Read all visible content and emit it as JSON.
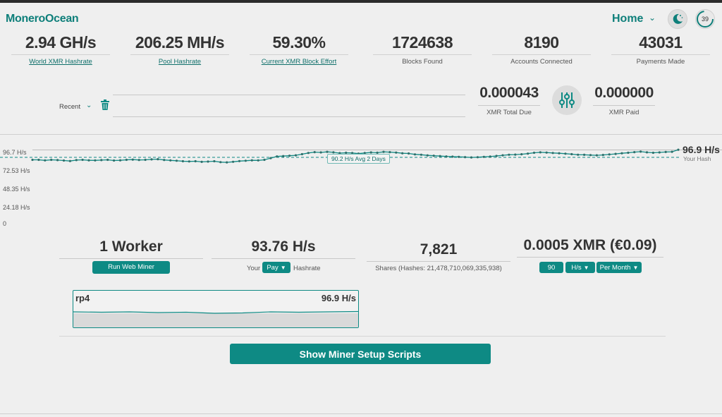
{
  "app": {
    "brand": "MoneroOcean"
  },
  "nav": {
    "current": "Home",
    "badge": "39"
  },
  "stats": [
    {
      "value": "2.94 GH/s",
      "label": "World XMR Hashrate",
      "link": true
    },
    {
      "value": "206.25 MH/s",
      "label": "Pool Hashrate",
      "link": true
    },
    {
      "value": "59.30%",
      "label": "Current XMR Block Effort",
      "link": true
    },
    {
      "value": "1724638",
      "label": "Blocks Found",
      "link": false
    },
    {
      "value": "8190",
      "label": "Accounts Connected",
      "link": false
    },
    {
      "value": "43031",
      "label": "Payments Made",
      "link": false
    }
  ],
  "address": {
    "selector": "Recent"
  },
  "balance": {
    "due_value": "0.000043",
    "due_label": "XMR Total Due",
    "paid_value": "0.000000",
    "paid_label": "XMR Paid"
  },
  "chart_data": {
    "type": "line",
    "title": "",
    "y_tick_labels": [
      "96.7 H/s",
      "72.53 H/s",
      "48.35 H/s",
      "24.18 H/s",
      "0"
    ],
    "ylim": [
      0,
      96.7
    ],
    "current_label": "96.9 H/s",
    "current_sub": "Your Hash",
    "avg_label": "90.2 H/s Avg 2 Days",
    "avg_value": 90.2,
    "series": [
      {
        "name": "Your Hash",
        "values": [
          88,
          88,
          87.5,
          88,
          87.8,
          87.4,
          87,
          87.8,
          88,
          87.6,
          87.5,
          87.8,
          88,
          87.4,
          87.6,
          88,
          88.2,
          87.9,
          88,
          88.4,
          88.6,
          87.9,
          87.5,
          87.2,
          86.8,
          86.6,
          86.8,
          86.2,
          86.5,
          86.8,
          86,
          85.8,
          86.3,
          86.9,
          87.2,
          87.6,
          87.5,
          88,
          89.5,
          91,
          91.3,
          91.6,
          92,
          93,
          94,
          94.8,
          94.5,
          95,
          94.6,
          93.9,
          94.2,
          94,
          93.5,
          94,
          94.5,
          94.3,
          95,
          94.8,
          94.4,
          93.8,
          93.6,
          92.8,
          92.5,
          91.9,
          91.6,
          91.3,
          91,
          90.8,
          90.6,
          90.4,
          90.1,
          90.3,
          90.6,
          90.9,
          91.4,
          92,
          92.5,
          92.6,
          92.9,
          93.5,
          94.2,
          94.6,
          94.4,
          94,
          93.8,
          93.4,
          93,
          92.5,
          92.4,
          92.2,
          92,
          92.3,
          92.7,
          93.2,
          93.8,
          94.2,
          94.8,
          95.2,
          94.6,
          94.2,
          94.5,
          94.9,
          95.1,
          96.9
        ]
      }
    ]
  },
  "summary": {
    "workers": "1 Worker",
    "run_web_miner": "Run Web Miner",
    "hashrate": "93.76 H/s",
    "your": "Your",
    "pay_option": "Pay",
    "hashrate_label": "Hashrate",
    "shares": "7,821",
    "shares_label": "Shares (Hashes: 21,478,710,069,335,938)",
    "earnings": "0.0005 XMR (€0.09)",
    "calc_amount": "90",
    "calc_unit": "H/s",
    "calc_period": "Per Month"
  },
  "workers": [
    {
      "name": "rp4",
      "hashrate": "96.9 H/s"
    }
  ],
  "setup_button": "Show Miner Setup Scripts",
  "colors": {
    "accent": "#0e8a84",
    "accent_dark": "#0e7f7a",
    "bg": "#efefef"
  }
}
